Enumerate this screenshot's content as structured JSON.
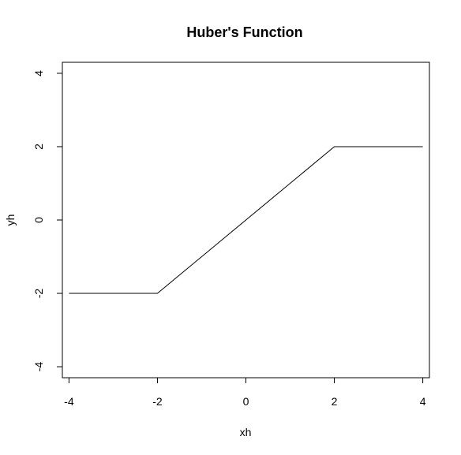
{
  "chart_data": {
    "type": "line",
    "title": "Huber's Function",
    "xlabel": "xh",
    "ylabel": "yh",
    "xlim": [
      -4.15,
      4.15
    ],
    "ylim": [
      -4.3,
      4.3
    ],
    "x_ticks": [
      -4,
      -2,
      0,
      2,
      4
    ],
    "y_ticks": [
      -4,
      -2,
      0,
      2,
      4
    ],
    "x_tick_labels": [
      "-4",
      "-2",
      "0",
      "2",
      "4"
    ],
    "y_tick_labels": [
      "-4",
      "-2",
      "0",
      "2",
      "4"
    ],
    "grid": false,
    "series": [
      {
        "x": [
          -4,
          -2,
          2,
          4
        ],
        "y": [
          -2,
          -2,
          2,
          2
        ],
        "color": "#000000"
      }
    ]
  }
}
